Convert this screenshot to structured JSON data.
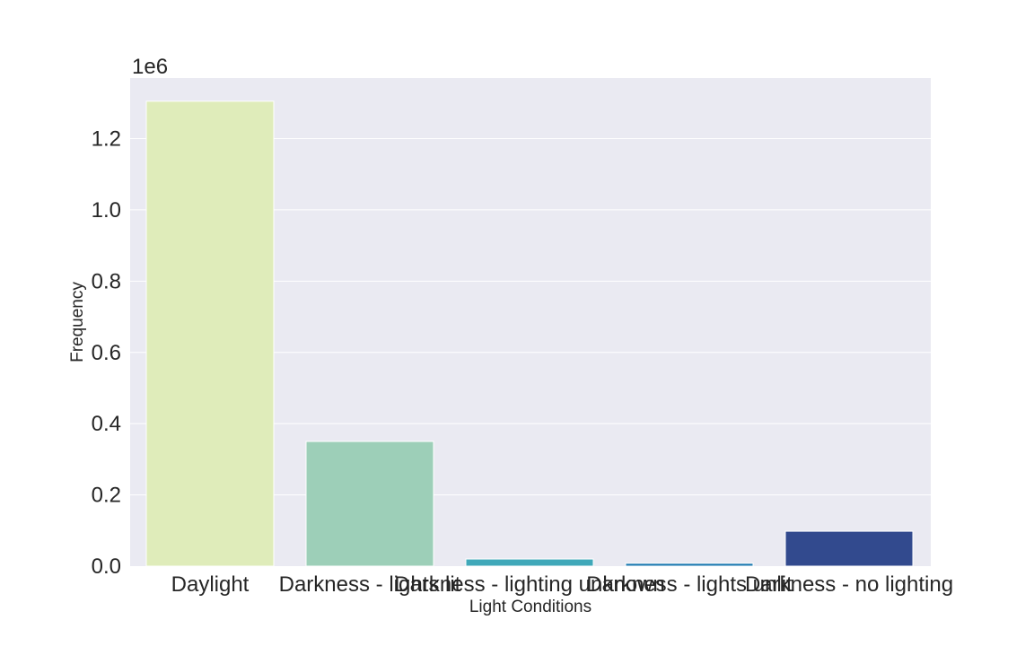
{
  "chart_data": {
    "type": "bar",
    "title": "",
    "xlabel": "Light Conditions",
    "ylabel": "Frequency",
    "y_scale_label": "1e6",
    "y_unit_multiplier": 1000000,
    "ylim": [
      0,
      1.37
    ],
    "yticks": [
      0.0,
      0.2,
      0.4,
      0.6,
      0.8,
      1.0,
      1.2
    ],
    "grid": true,
    "legend": "none",
    "background_color": "#eaeaf2",
    "categories": [
      "Daylight",
      "Darkness - lights lit",
      "Darkness - lighting unknown",
      "Darkness - lights unlit",
      "Darkness - no lighting"
    ],
    "values": [
      1305000,
      350000,
      20000,
      8000,
      98000
    ],
    "colors": [
      "#dfecba",
      "#9dcfb8",
      "#40a8b9",
      "#1e7ab0",
      "#324a8e"
    ]
  }
}
